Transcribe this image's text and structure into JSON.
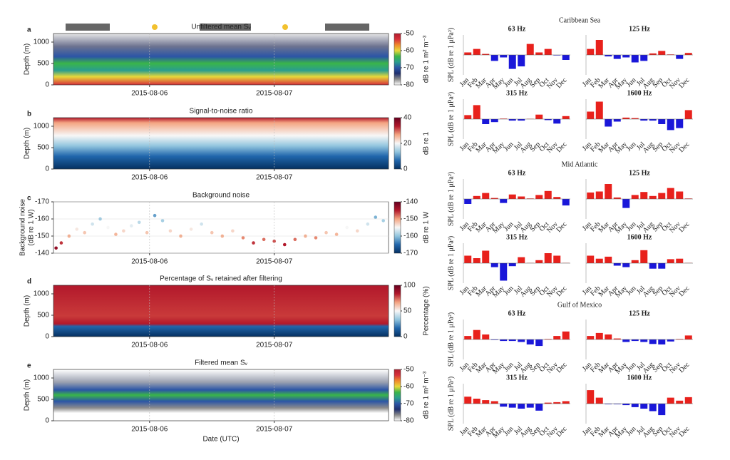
{
  "chart_data": [
    {
      "type": "heatmap",
      "panel": "a",
      "title": "Unfiltered mean Sᵥ",
      "ylabel": "Depth (m)",
      "ylim": [
        1200,
        0
      ],
      "yticks": [
        0,
        500,
        1000
      ],
      "xlim": [
        "2015-08-05T05:30",
        "2015-08-07T22:00"
      ],
      "xticks": [
        "2015-08-06",
        "2015-08-07"
      ],
      "clim": [
        -80,
        -50
      ],
      "cticks": [
        -50,
        -60,
        -70,
        -80
      ],
      "clabel": "dB re 1 m² m⁻³",
      "colormap": [
        "#ffffff",
        "#8c8c8c",
        "#1f2f6e",
        "#2b55a6",
        "#2a9d8f",
        "#3ab54a",
        "#e8d83a",
        "#f08a2c",
        "#d7303a",
        "#b21f2e"
      ]
    },
    {
      "type": "heatmap",
      "panel": "b",
      "title": "Signal-to-noise ratio",
      "ylabel": "Depth (m)",
      "ylim": [
        1200,
        0
      ],
      "yticks": [
        0,
        500,
        1000
      ],
      "xlim": [
        "2015-08-05T05:30",
        "2015-08-07T22:00"
      ],
      "xticks": [
        "2015-08-06",
        "2015-08-07"
      ],
      "clim": [
        0,
        40
      ],
      "cticks": [
        0,
        20,
        40
      ],
      "clabel": "dB re 1",
      "colormap": [
        "#053061",
        "#2166ac",
        "#92c5de",
        "#f7f7f7",
        "#f4a582",
        "#b2182b",
        "#67001f"
      ]
    },
    {
      "type": "scatter",
      "panel": "c",
      "title": "Background noise",
      "ylabel": [
        "Background noise",
        "(dB re 1 W)"
      ],
      "ylim": [
        -170,
        -140
      ],
      "yticks": [
        -140,
        -150,
        -160,
        -170
      ],
      "xlim": [
        "2015-08-05T05:30",
        "2015-08-07T22:00"
      ],
      "xticks": [
        "2015-08-06",
        "2015-08-07"
      ],
      "clim": [
        -170,
        -140
      ],
      "cticks": [
        -140,
        -150,
        -160,
        -170
      ],
      "clabel": "dB re 1 W",
      "colormap": [
        "#053061",
        "#2166ac",
        "#92c5de",
        "#f7f7f7",
        "#f4a582",
        "#b2182b",
        "#67001f"
      ],
      "x": [
        "2015-08-05T06:00",
        "2015-08-05T07:00",
        "2015-08-05T08:30",
        "2015-08-05T10:00",
        "2015-08-05T11:30",
        "2015-08-05T13:00",
        "2015-08-05T14:30",
        "2015-08-05T16:00",
        "2015-08-05T17:30",
        "2015-08-05T19:00",
        "2015-08-05T20:30",
        "2015-08-05T22:00",
        "2015-08-05T23:30",
        "2015-08-06T01:00",
        "2015-08-06T02:30",
        "2015-08-06T04:00",
        "2015-08-06T06:00",
        "2015-08-06T08:00",
        "2015-08-06T10:00",
        "2015-08-06T12:00",
        "2015-08-06T14:00",
        "2015-08-06T16:00",
        "2015-08-06T18:00",
        "2015-08-06T20:00",
        "2015-08-06T22:00",
        "2015-08-07T00:00",
        "2015-08-07T02:00",
        "2015-08-07T04:00",
        "2015-08-07T06:00",
        "2015-08-07T08:00",
        "2015-08-07T10:00",
        "2015-08-07T12:00",
        "2015-08-07T14:00",
        "2015-08-07T16:00",
        "2015-08-07T18:00",
        "2015-08-07T19:30",
        "2015-08-07T21:00"
      ],
      "values": [
        -143,
        -146,
        -150,
        -154,
        -152,
        -157,
        -160,
        -155,
        -151,
        -153,
        -156,
        -158,
        -152,
        -162,
        -159,
        -153,
        -150,
        -154,
        -157,
        -152,
        -150,
        -153,
        -149,
        -146,
        -148,
        -147,
        -145,
        -148,
        -150,
        -149,
        -152,
        -151,
        -155,
        -153,
        -157,
        -161,
        -159
      ]
    },
    {
      "type": "heatmap",
      "panel": "d",
      "title": "Percentage of Sᵥ retained after filtering",
      "ylabel": "Depth (m)",
      "ylim": [
        1200,
        0
      ],
      "yticks": [
        0,
        500,
        1000
      ],
      "xlim": [
        "2015-08-05T05:30",
        "2015-08-07T22:00"
      ],
      "xticks": [
        "2015-08-06",
        "2015-08-07"
      ],
      "clim": [
        0,
        100
      ],
      "cticks": [
        0,
        50,
        100
      ],
      "clabel": "Percentage (%)",
      "colormap": [
        "#053061",
        "#2166ac",
        "#92c5de",
        "#f7f7f7",
        "#f4a582",
        "#b2182b",
        "#67001f"
      ]
    },
    {
      "type": "heatmap",
      "panel": "e",
      "title": "Filtered mean Sᵥ",
      "ylabel": "Depth (m)",
      "xlabel": "Date (UTC)",
      "ylim": [
        1200,
        0
      ],
      "yticks": [
        0,
        500,
        1000
      ],
      "xlim": [
        "2015-08-05T05:30",
        "2015-08-07T22:00"
      ],
      "xticks": [
        "2015-08-06",
        "2015-08-07"
      ],
      "clim": [
        -80,
        -50
      ],
      "cticks": [
        -50,
        -60,
        -70,
        -80
      ],
      "clabel": "dB re 1 m² m⁻³",
      "colormap": [
        "#ffffff",
        "#8c8c8c",
        "#1f2f6e",
        "#2b55a6",
        "#2a9d8f",
        "#3ab54a",
        "#e8d83a",
        "#f08a2c",
        "#d7303a",
        "#b21f2e"
      ]
    },
    {
      "type": "bar",
      "group_title": "Caribbean Sea",
      "title": "63 Hz",
      "ylabel": "SPL (dB re 1 μPa²)",
      "ylim": [
        -4,
        4
      ],
      "positive_color": "#e8211c",
      "negative_color": "#1a17d9",
      "categories": [
        "Jan",
        "Feb",
        "Mar",
        "Apr",
        "May",
        "Jun",
        "Jul",
        "Aug",
        "Sep",
        "Oct",
        "Nov",
        "Dec"
      ],
      "values": [
        0.5,
        1.2,
        0.2,
        -1.2,
        -0.5,
        -2.8,
        -2.3,
        2.2,
        0.5,
        1.2,
        -0.1,
        -1.0
      ]
    },
    {
      "type": "bar",
      "title": "125 Hz",
      "ylim": [
        -4,
        4
      ],
      "positive_color": "#e8211c",
      "negative_color": "#1a17d9",
      "categories": [
        "Jan",
        "Feb",
        "Mar",
        "Apr",
        "May",
        "Jun",
        "Jul",
        "Aug",
        "Sep",
        "Oct",
        "Nov",
        "Dec"
      ],
      "values": [
        1.2,
        3.0,
        -0.3,
        -0.8,
        -0.5,
        -1.5,
        -1.2,
        0.3,
        0.8,
        0.1,
        -0.8,
        0.4
      ]
    },
    {
      "type": "bar",
      "title": "315 Hz",
      "ylabel": "SPL (dB re 1 μPa²)",
      "ylim": [
        -4,
        4
      ],
      "positive_color": "#e8211c",
      "negative_color": "#1a17d9",
      "categories": [
        "Jan",
        "Feb",
        "Mar",
        "Apr",
        "May",
        "Jun",
        "Jul",
        "Aug",
        "Sep",
        "Oct",
        "Nov",
        "Dec"
      ],
      "values": [
        0.8,
        2.8,
        -1.0,
        -0.6,
        0.1,
        -0.3,
        -0.3,
        0.05,
        0.9,
        -0.2,
        -0.9,
        0.6
      ]
    },
    {
      "type": "bar",
      "title": "1600 Hz",
      "ylim": [
        -4,
        4
      ],
      "positive_color": "#e8211c",
      "negative_color": "#1a17d9",
      "categories": [
        "Jan",
        "Feb",
        "Mar",
        "Apr",
        "May",
        "Jun",
        "Jul",
        "Aug",
        "Sep",
        "Oct",
        "Nov",
        "Dec"
      ],
      "values": [
        1.5,
        3.5,
        -1.5,
        -0.5,
        0.3,
        0.2,
        -0.3,
        -0.3,
        -1.0,
        -2.2,
        -1.8,
        1.8
      ]
    },
    {
      "type": "bar",
      "group_title": "Mid Atlantic",
      "title": "63 Hz",
      "ylabel": "SPL (dB re 1 μPa²)",
      "ylim": [
        -4,
        4
      ],
      "positive_color": "#e8211c",
      "negative_color": "#1a17d9",
      "categories": [
        "Jan",
        "Feb",
        "Mar",
        "Apr",
        "May",
        "Jun",
        "Jul",
        "Aug",
        "Sep",
        "Oct",
        "Nov",
        "Dec"
      ],
      "values": [
        -1.0,
        0.6,
        1.2,
        0.2,
        -0.8,
        0.9,
        0.5,
        0.1,
        0.8,
        1.6,
        0.4,
        -1.3
      ]
    },
    {
      "type": "bar",
      "title": "125 Hz",
      "ylim": [
        -4,
        4
      ],
      "positive_color": "#e8211c",
      "negative_color": "#1a17d9",
      "categories": [
        "Jan",
        "Feb",
        "Mar",
        "Apr",
        "May",
        "Jun",
        "Jul",
        "Aug",
        "Sep",
        "Oct",
        "Nov",
        "Dec"
      ],
      "values": [
        1.3,
        1.5,
        3.0,
        0.3,
        -1.8,
        0.8,
        1.4,
        0.6,
        1.2,
        2.2,
        1.5,
        0.1
      ]
    },
    {
      "type": "bar",
      "title": "315 Hz",
      "ylabel": "SPL (dB re 1 μPa²)",
      "ylim": [
        -4,
        4
      ],
      "positive_color": "#e8211c",
      "negative_color": "#1a17d9",
      "categories": [
        "Jan",
        "Feb",
        "Mar",
        "Apr",
        "May",
        "Jun",
        "Jul",
        "Aug",
        "Sep",
        "Oct",
        "Nov",
        "Dec"
      ],
      "values": [
        1.5,
        1.0,
        2.5,
        -0.8,
        -3.5,
        -0.6,
        1.2,
        0.05,
        0.6,
        2.0,
        1.5,
        0.05
      ]
    },
    {
      "type": "bar",
      "title": "1600 Hz",
      "ylim": [
        -4,
        4
      ],
      "positive_color": "#e8211c",
      "negative_color": "#1a17d9",
      "categories": [
        "Jan",
        "Feb",
        "Mar",
        "Apr",
        "May",
        "Jun",
        "Jul",
        "Aug",
        "Sep",
        "Oct",
        "Nov",
        "Dec"
      ],
      "values": [
        1.5,
        0.9,
        1.3,
        -0.5,
        -0.8,
        0.6,
        2.6,
        -1.1,
        -1.1,
        0.8,
        0.9,
        0.05
      ]
    },
    {
      "type": "bar",
      "group_title": "Gulf of Mexico",
      "title": "63 Hz",
      "ylabel": "SPL (dB re 1 μPa²)",
      "ylim": [
        -4,
        4
      ],
      "positive_color": "#e8211c",
      "negative_color": "#1a17d9",
      "categories": [
        "Jan",
        "Feb",
        "Mar",
        "Apr",
        "May",
        "Jun",
        "Jul",
        "Aug",
        "Sep",
        "Oct",
        "Nov",
        "Dec"
      ],
      "values": [
        0.7,
        1.9,
        1.0,
        -0.1,
        -0.3,
        -0.3,
        -0.5,
        -1.0,
        -1.3,
        0.1,
        0.7,
        1.6
      ]
    },
    {
      "type": "bar",
      "title": "125 Hz",
      "ylim": [
        -4,
        4
      ],
      "positive_color": "#e8211c",
      "negative_color": "#1a17d9",
      "categories": [
        "Jan",
        "Feb",
        "Mar",
        "Apr",
        "May",
        "Jun",
        "Jul",
        "Aug",
        "Sep",
        "Oct",
        "Nov",
        "Dec"
      ],
      "values": [
        0.7,
        1.3,
        1.0,
        0.2,
        -0.5,
        -0.3,
        -0.5,
        -0.9,
        -1.0,
        -0.4,
        0.1,
        0.8
      ]
    },
    {
      "type": "bar",
      "title": "315 Hz",
      "ylabel": "SPL (dB re 1 μPa²)",
      "ylim": [
        -4,
        4
      ],
      "positive_color": "#e8211c",
      "negative_color": "#1a17d9",
      "categories": [
        "Jan",
        "Feb",
        "Mar",
        "Apr",
        "May",
        "Jun",
        "Jul",
        "Aug",
        "Sep",
        "Oct",
        "Nov",
        "Dec"
      ],
      "values": [
        1.4,
        1.0,
        0.7,
        0.5,
        -0.6,
        -0.8,
        -1.0,
        -0.8,
        -1.4,
        0.2,
        0.3,
        0.5
      ]
    },
    {
      "type": "bar",
      "title": "1600 Hz",
      "ylim": [
        -4,
        4
      ],
      "positive_color": "#e8211c",
      "negative_color": "#1a17d9",
      "categories": [
        "Jan",
        "Feb",
        "Mar",
        "Apr",
        "May",
        "Jun",
        "Jul",
        "Aug",
        "Sep",
        "Oct",
        "Nov",
        "Dec"
      ],
      "values": [
        2.7,
        1.2,
        -0.1,
        -0.1,
        -0.3,
        -0.7,
        -1.0,
        -1.5,
        -2.3,
        1.2,
        0.6,
        1.3
      ]
    }
  ]
}
